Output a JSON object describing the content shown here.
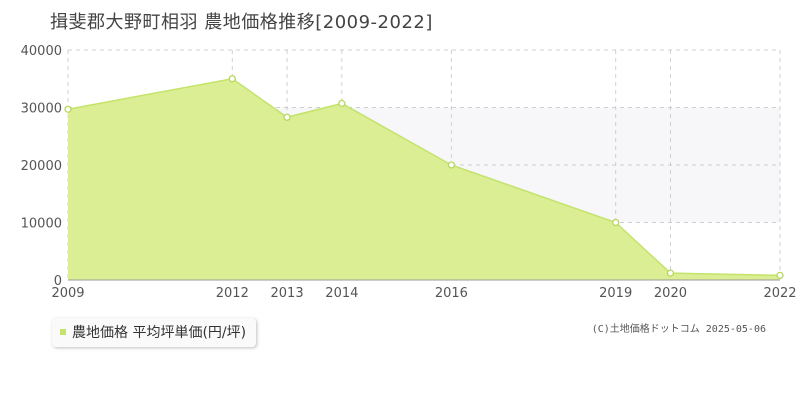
{
  "header": {
    "title": "揖斐郡大野町相羽 農地価格推移[2009-2022]"
  },
  "legend": {
    "label": "農地価格 平均坪単価(円/坪)"
  },
  "credit": "(C)土地価格ドットコム 2025-05-06",
  "colors": {
    "fill": "#dcee94",
    "line": "#c3e36a",
    "marker": "#b7d85c",
    "grid": "#cfcfcf",
    "plot_band": "#f7f7f9"
  },
  "chart_data": {
    "type": "area",
    "x": [
      "2009",
      "2012",
      "2013",
      "2014",
      "2016",
      "2019",
      "2020",
      "2022"
    ],
    "series": [
      {
        "name": "農地価格 平均坪単価(円/坪)",
        "values": [
          29700,
          35000,
          28300,
          30700,
          20000,
          10000,
          1200,
          800
        ]
      }
    ],
    "y_ticks": [
      "0",
      "10000",
      "20000",
      "30000",
      "40000"
    ],
    "ylim": [
      0,
      40000
    ],
    "grid": true,
    "legend_position": "bottom-left"
  }
}
